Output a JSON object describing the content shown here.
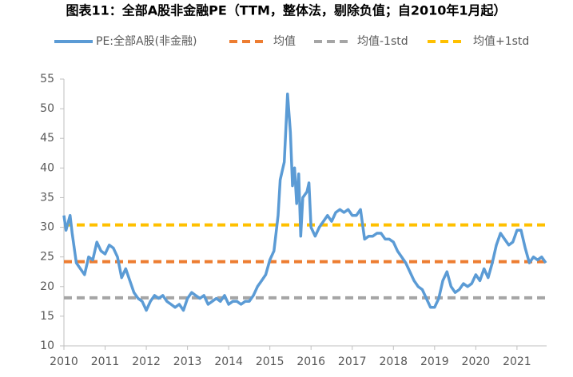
{
  "chart_data": {
    "type": "line",
    "title": "图表11：全部A股非金融PE（TTM，整体法，剔除负值；自2010年1月起）",
    "xlim": [
      2010,
      2021.72
    ],
    "xticks": [
      2010,
      2011,
      2012,
      2013,
      2014,
      2015,
      2016,
      2017,
      2018,
      2019,
      2020,
      2021
    ],
    "ylim": [
      10,
      55
    ],
    "yticks": [
      10,
      15,
      20,
      25,
      30,
      35,
      40,
      45,
      50,
      55
    ],
    "series": [
      {
        "name": "PE:全部A股(非金融)",
        "color": "#5b9bd5",
        "dashed": false,
        "x": [
          2010.0,
          2010.05,
          2010.15,
          2010.2,
          2010.3,
          2010.4,
          2010.5,
          2010.6,
          2010.7,
          2010.8,
          2010.9,
          2011.0,
          2011.1,
          2011.2,
          2011.3,
          2011.4,
          2011.5,
          2011.6,
          2011.7,
          2011.8,
          2011.9,
          2012.0,
          2012.1,
          2012.2,
          2012.3,
          2012.4,
          2012.5,
          2012.6,
          2012.7,
          2012.8,
          2012.9,
          2013.0,
          2013.1,
          2013.2,
          2013.3,
          2013.4,
          2013.5,
          2013.6,
          2013.7,
          2013.8,
          2013.9,
          2014.0,
          2014.1,
          2014.2,
          2014.3,
          2014.4,
          2014.5,
          2014.6,
          2014.7,
          2014.8,
          2014.9,
          2015.0,
          2015.1,
          2015.2,
          2015.25,
          2015.35,
          2015.43,
          2015.5,
          2015.55,
          2015.6,
          2015.65,
          2015.7,
          2015.75,
          2015.8,
          2015.9,
          2015.95,
          2016.0,
          2016.1,
          2016.2,
          2016.3,
          2016.4,
          2016.5,
          2016.6,
          2016.7,
          2016.8,
          2016.9,
          2017.0,
          2017.1,
          2017.2,
          2017.3,
          2017.4,
          2017.5,
          2017.6,
          2017.7,
          2017.8,
          2017.9,
          2018.0,
          2018.1,
          2018.2,
          2018.3,
          2018.4,
          2018.5,
          2018.6,
          2018.7,
          2018.8,
          2018.9,
          2019.0,
          2019.1,
          2019.2,
          2019.3,
          2019.4,
          2019.5,
          2019.6,
          2019.7,
          2019.8,
          2019.9,
          2020.0,
          2020.1,
          2020.2,
          2020.3,
          2020.4,
          2020.5,
          2020.6,
          2020.7,
          2020.8,
          2020.9,
          2021.0,
          2021.1,
          2021.2,
          2021.3,
          2021.4,
          2021.5,
          2021.6,
          2021.7
        ],
        "values": [
          32,
          29.5,
          32,
          29,
          24,
          23,
          22,
          25,
          24.5,
          27.5,
          26,
          25.5,
          27,
          26.5,
          25,
          21.5,
          23,
          21,
          19,
          18,
          17.5,
          16,
          17.5,
          18.5,
          18,
          18.5,
          17.5,
          17,
          16.5,
          17,
          16,
          18,
          19,
          18.5,
          18,
          18.5,
          17,
          17.5,
          18,
          17.5,
          18.5,
          17,
          17.5,
          17.5,
          17,
          17.5,
          17.5,
          18.5,
          20,
          21,
          22,
          24.5,
          26,
          32,
          38,
          41,
          52.5,
          46,
          37,
          40,
          34,
          39,
          28.5,
          35,
          36,
          37.5,
          30,
          28.5,
          30,
          31,
          32,
          31,
          32.5,
          33,
          32.5,
          33,
          32,
          32,
          33,
          28,
          28.5,
          28.5,
          29,
          29,
          28,
          28,
          27.5,
          26,
          25,
          24,
          22.5,
          21,
          20,
          19.5,
          18,
          16.5,
          16.5,
          18,
          21,
          22.5,
          20,
          19,
          19.5,
          20.5,
          20,
          20.5,
          22,
          21,
          23,
          21.5,
          24,
          27,
          29,
          28,
          27,
          27.5,
          29.5,
          29.5,
          26.5,
          24,
          25,
          24.5,
          25,
          24
        ]
      },
      {
        "name": "均值",
        "color": "#ed7d31",
        "dashed": true,
        "x": [
          2010,
          2021.72
        ],
        "values": [
          24.2,
          24.2
        ]
      },
      {
        "name": "均值-1std",
        "color": "#a5a5a5",
        "dashed": true,
        "x": [
          2010,
          2021.72
        ],
        "values": [
          18.1,
          18.1
        ]
      },
      {
        "name": "均值+1std",
        "color": "#ffc000",
        "dashed": true,
        "x": [
          2010,
          2021.72
        ],
        "values": [
          30.4,
          30.4
        ]
      }
    ]
  }
}
